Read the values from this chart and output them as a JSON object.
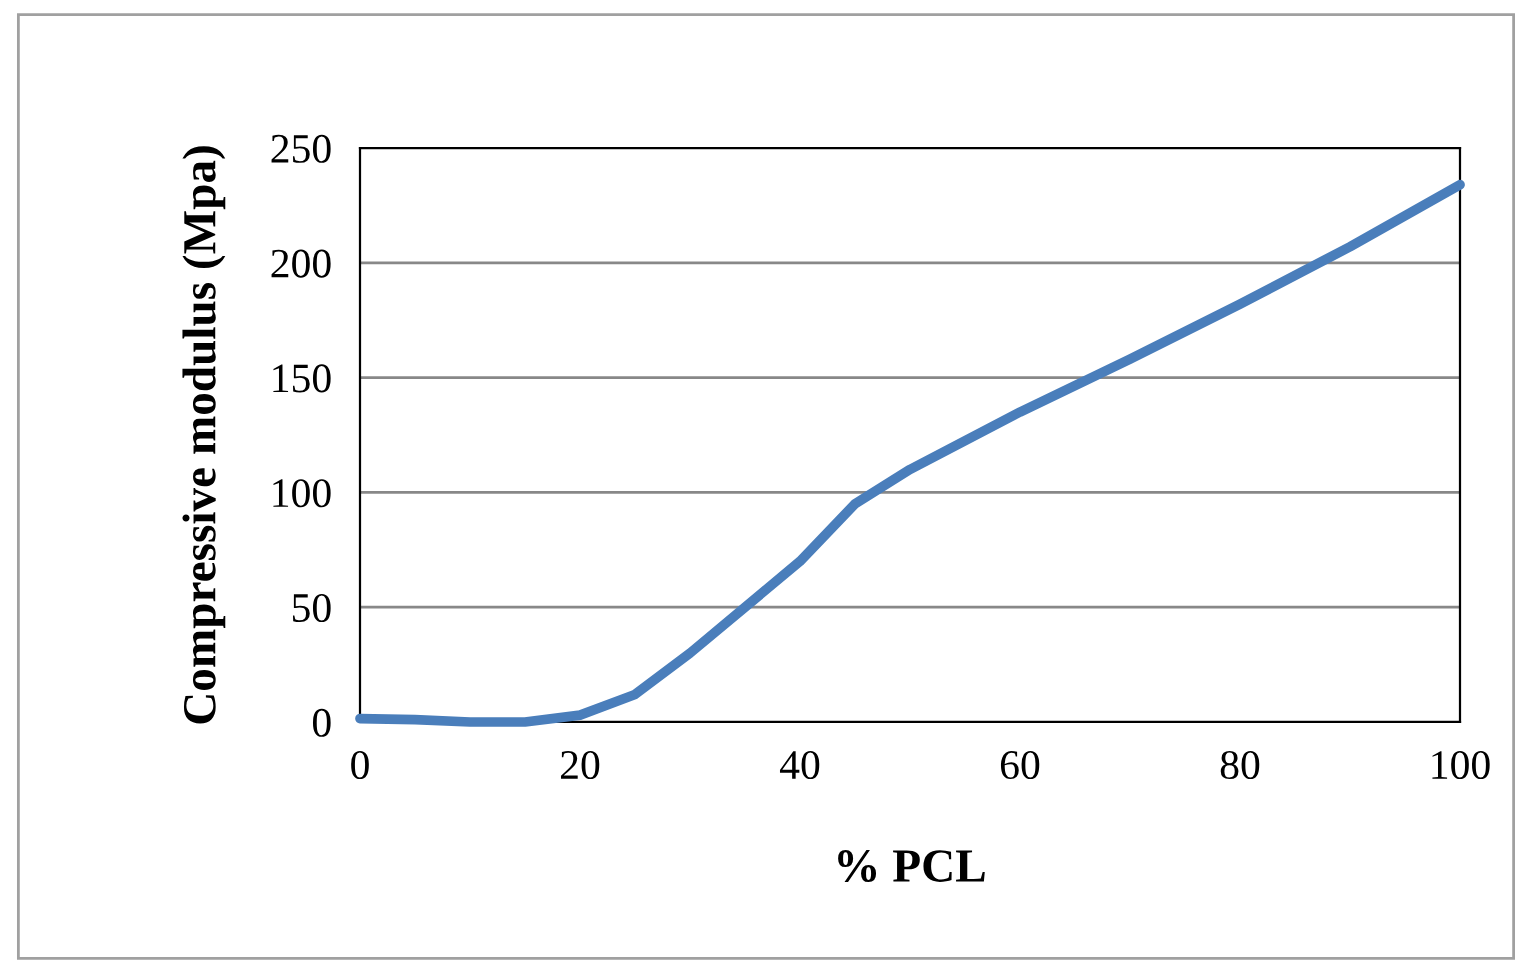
{
  "chart_data": {
    "type": "line",
    "xlabel": "% PCL",
    "ylabel": "Compressive modulus (Mpa)",
    "x": [
      0,
      5,
      10,
      15,
      20,
      25,
      30,
      35,
      40,
      45,
      50,
      60,
      70,
      80,
      90,
      100
    ],
    "series": [
      {
        "color": "#4a7ebb",
        "values": [
          1.5,
          1,
          0,
          0,
          3,
          12,
          30,
          50,
          70,
          95,
          110,
          135,
          158,
          182,
          207,
          234
        ]
      }
    ],
    "xlim": [
      0,
      100
    ],
    "xticks": [
      0,
      20,
      40,
      60,
      80,
      100
    ],
    "ylim": [
      0,
      250
    ],
    "yticks": [
      0,
      50,
      100,
      150,
      200,
      250
    ],
    "grid": "y",
    "marker": "none",
    "line_style": "solid"
  }
}
